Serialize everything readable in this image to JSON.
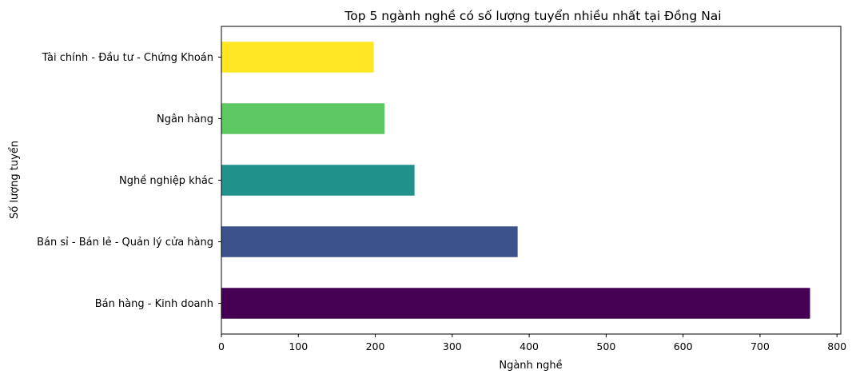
{
  "chart_data": {
    "type": "bar",
    "orientation": "horizontal",
    "title": "Top 5 ngành nghề có số lượng tuyển nhiều nhất tại Đồng Nai",
    "xlabel": "Ngành nghề",
    "ylabel": "Số lượng tuyển",
    "xlim": [
      0,
      805
    ],
    "xticks": [
      0,
      100,
      200,
      300,
      400,
      500,
      600,
      700,
      800
    ],
    "grid": false,
    "legend": "none",
    "categories": [
      "Bán hàng - Kinh doanh",
      "Bán sỉ - Bán lẻ - Quản lý cửa hàng",
      "Nghề nghiệp khác",
      "Ngân hàng",
      "Tài chính - Đầu tư - Chứng Khoán"
    ],
    "values": [
      765,
      385,
      251,
      212,
      198
    ],
    "colors": [
      "#440154",
      "#3b528b",
      "#21918c",
      "#5ec962",
      "#fde725"
    ]
  }
}
